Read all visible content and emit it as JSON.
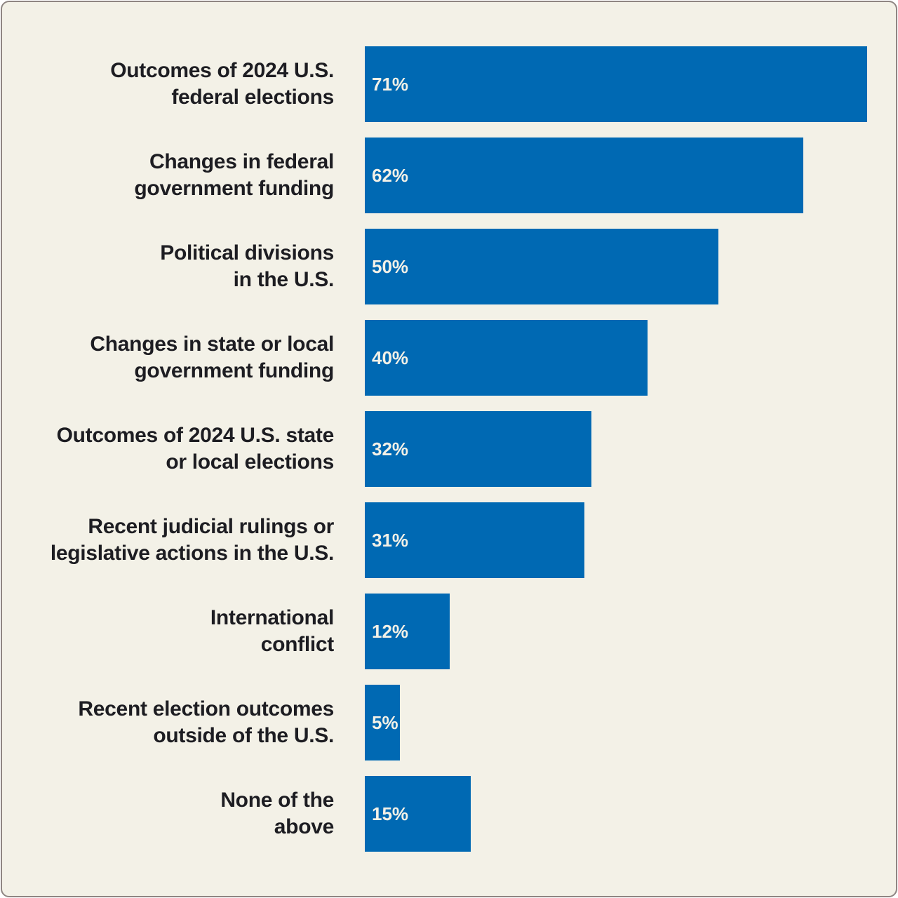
{
  "chart_data": {
    "type": "bar",
    "orientation": "horizontal",
    "title": "",
    "xlabel": "",
    "ylabel": "",
    "xlim": [
      0,
      71
    ],
    "grid": false,
    "legend": "none",
    "bar_color": "#0069b3",
    "background_color": "#f3f1e7",
    "value_suffix": "%",
    "categories": [
      [
        "Outcomes of 2024 U.S.",
        "federal elections"
      ],
      [
        "Changes in federal",
        "government funding"
      ],
      [
        "Political divisions",
        "in the U.S."
      ],
      [
        "Changes in state or local",
        "government funding"
      ],
      [
        "Outcomes of 2024 U.S. state",
        "or local elections"
      ],
      [
        "Recent judicial rulings or",
        "legislative actions in the U.S."
      ],
      [
        "International",
        "conflict"
      ],
      [
        "Recent election outcomes",
        "outside of the U.S."
      ],
      [
        "None of the",
        "above"
      ]
    ],
    "values": [
      71,
      62,
      50,
      40,
      32,
      31,
      12,
      5,
      15
    ],
    "value_labels": [
      "71%",
      "62%",
      "50%",
      "40%",
      "32%",
      "31%",
      "12%",
      "5%",
      "15%"
    ]
  }
}
